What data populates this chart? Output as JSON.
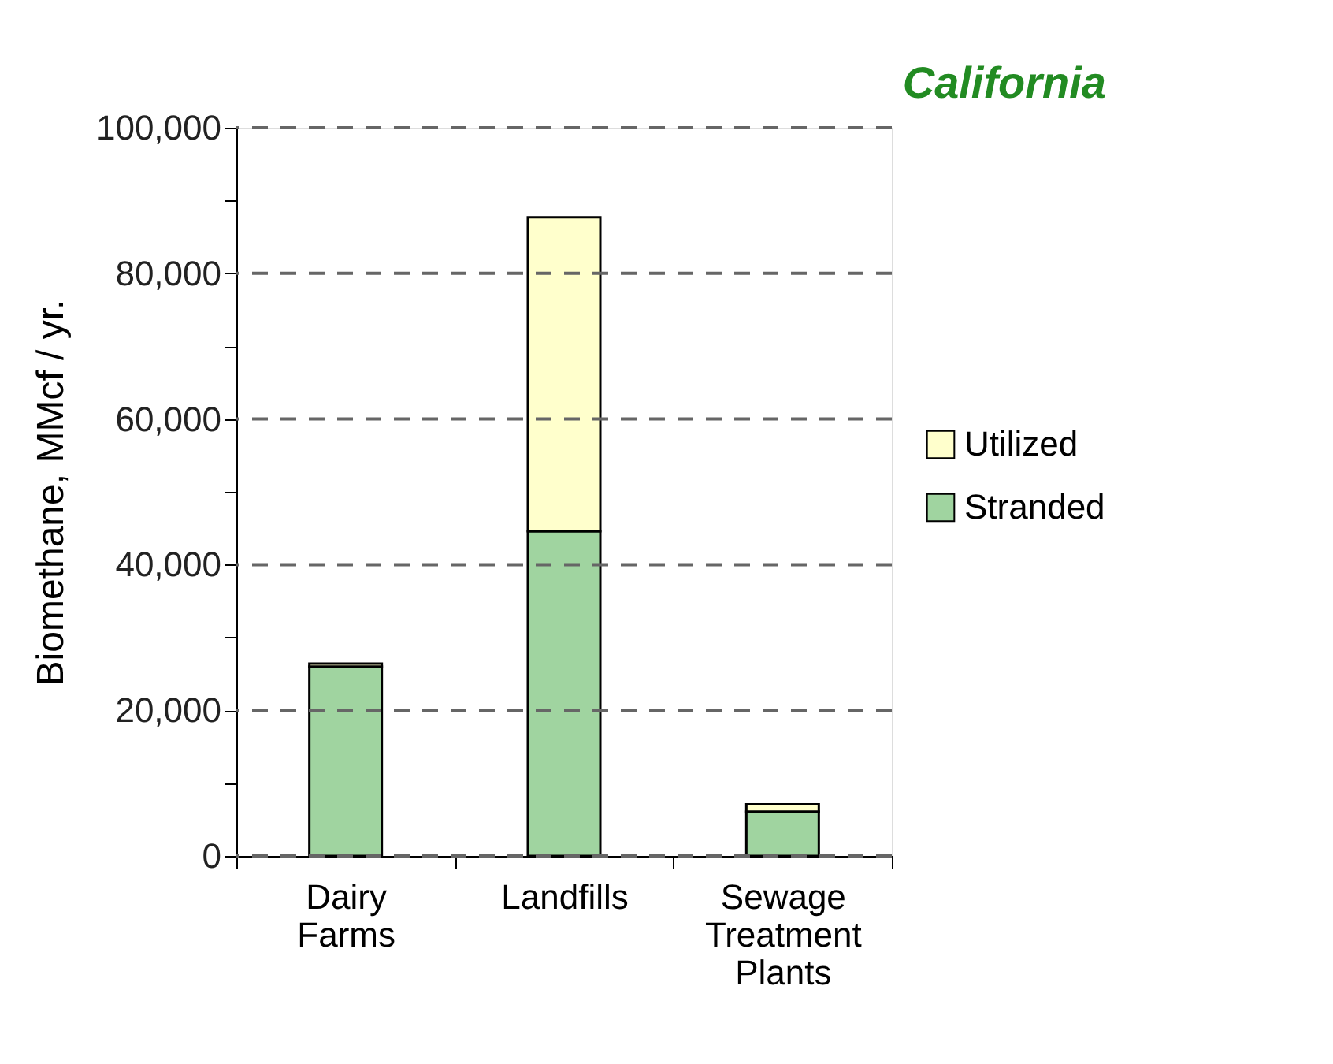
{
  "chart_data": {
    "type": "bar",
    "title": "California",
    "ylabel": "Biomethane, MMcf / yr.",
    "categories": [
      "Dairy Farms",
      "Landfills",
      "Sewage Treatment Plants"
    ],
    "stacked": true,
    "series": [
      {
        "name": "Stranded",
        "color": "#a0d4a0",
        "values": [
          26000,
          44600,
          6100
        ]
      },
      {
        "name": "Utilized",
        "color": "#ffffcc",
        "values": [
          400,
          43100,
          1000
        ]
      }
    ],
    "ylim": [
      0,
      100000
    ],
    "yticks": [
      0,
      {
        "value": 10000,
        "label": null
      },
      {
        "value": 20000,
        "label": "20,000"
      },
      {
        "value": 30000,
        "label": null
      },
      {
        "value": 40000,
        "label": "40,000"
      },
      {
        "value": 50000,
        "label": null
      },
      {
        "value": 60000,
        "label": "60,000"
      },
      {
        "value": 70000,
        "label": null
      },
      {
        "value": 80000,
        "label": "80,000"
      },
      {
        "value": 90000,
        "label": null
      },
      {
        "value": 100000,
        "label": "100,000"
      }
    ],
    "grid": "y",
    "legend": "right"
  }
}
